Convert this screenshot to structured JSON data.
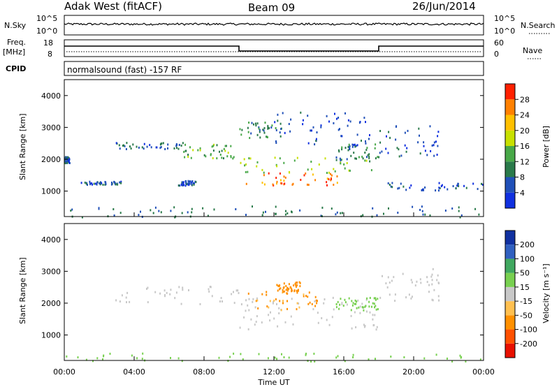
{
  "header": {
    "station": "Adak West (fitACF)",
    "beam": "Beam 09",
    "date": "26/Jun/2014"
  },
  "sky_panel": {
    "left_label": "N.Sky",
    "left_ticks": [
      "10^5",
      "10^0"
    ],
    "right_label": "N.Search",
    "right_ticks": [
      "10^5",
      "10^0"
    ]
  },
  "freq_panel": {
    "left_label_line1": "Freq.",
    "left_label_line2": "[MHz]",
    "left_ticks": [
      "18",
      "8"
    ],
    "right_label": "Nave",
    "right_ticks": [
      "60",
      "0"
    ]
  },
  "cpid_panel": {
    "label": "CPID",
    "text": "normalsound (fast) -157 RF"
  },
  "x_axis": {
    "label": "Time UT",
    "ticks": [
      "00:00",
      "04:00",
      "08:00",
      "12:00",
      "16:00",
      "20:00",
      "00:00"
    ]
  },
  "power_colorbar": {
    "label": "Power [dB]",
    "ticks": [
      "28",
      "24",
      "20",
      "16",
      "12",
      "8",
      "4"
    ],
    "colors": [
      "#1030e0",
      "#2050b8",
      "#2a7a4a",
      "#48a848",
      "#c8e000",
      "#ffc000",
      "#ff8000",
      "#ff2000"
    ]
  },
  "velocity_colorbar": {
    "label": "Velocity [m s⁻¹]",
    "ticks": [
      "200",
      "100",
      "50",
      "15",
      "-15",
      "-50",
      "-100",
      "-200"
    ],
    "colors": [
      "#e81000",
      "#ff5000",
      "#ff9000",
      "#ffc050",
      "#c8c8c8",
      "#78d050",
      "#40a860",
      "#3060c0",
      "#1030a0"
    ]
  },
  "chart_data": [
    {
      "type": "heatmap",
      "title": "",
      "xlabel": "Time UT",
      "ylabel": "Slant Range [km]",
      "xlim": [
        0,
        24
      ],
      "ylim": [
        200,
        4500
      ],
      "yticks": [
        1000,
        2000,
        3000,
        4000
      ],
      "quantity": "Power [dB]",
      "scatter_regions": [
        {
          "t": [
            0.0,
            0.3
          ],
          "range": [
            1900,
            2100
          ],
          "value_db": 6
        },
        {
          "t": [
            0.9,
            3.3
          ],
          "range": [
            1230,
            1330
          ],
          "value_db": 6
        },
        {
          "t": [
            2.9,
            6.8
          ],
          "range": [
            2300,
            2550
          ],
          "value_db": 7
        },
        {
          "t": [
            6.8,
            10.0
          ],
          "range": [
            2050,
            2500
          ],
          "value_db": 14
        },
        {
          "t": [
            6.5,
            7.5
          ],
          "range": [
            1200,
            1350
          ],
          "value_db": 6
        },
        {
          "t": [
            10.0,
            12.5
          ],
          "range": [
            2700,
            3200
          ],
          "value_db": 10
        },
        {
          "t": [
            10.0,
            15.8
          ],
          "range": [
            1200,
            1600
          ],
          "value_db": 26
        },
        {
          "t": [
            10.0,
            18.0
          ],
          "range": [
            1600,
            2100
          ],
          "value_db": 16
        },
        {
          "t": [
            12.0,
            17.5
          ],
          "range": [
            2400,
            3500
          ],
          "value_db": 5
        },
        {
          "t": [
            15.5,
            18.0
          ],
          "range": [
            1900,
            2500
          ],
          "value_db": 10
        },
        {
          "t": [
            18.0,
            21.5
          ],
          "range": [
            2100,
            3100
          ],
          "value_db": 6
        },
        {
          "t": [
            18.5,
            24.0
          ],
          "range": [
            1050,
            1300
          ],
          "value_db": 5
        },
        {
          "t": [
            0.0,
            24.0
          ],
          "range": [
            200,
            550
          ],
          "value_db": 8
        }
      ]
    },
    {
      "type": "heatmap",
      "title": "",
      "xlabel": "Time UT",
      "ylabel": "Slant Range [km]",
      "xlim": [
        0,
        24
      ],
      "ylim": [
        200,
        4500
      ],
      "yticks": [
        1000,
        2000,
        3000,
        4000
      ],
      "quantity": "Velocity [m s⁻¹]",
      "scatter_regions": [
        {
          "t": [
            2.9,
            10.0
          ],
          "range": [
            2000,
            2550
          ],
          "velocity": 0
        },
        {
          "t": [
            10.0,
            18.0
          ],
          "range": [
            1200,
            2200
          ],
          "velocity": 0
        },
        {
          "t": [
            10.5,
            14.5
          ],
          "range": [
            1800,
            2400
          ],
          "velocity": -60
        },
        {
          "t": [
            12.0,
            13.5
          ],
          "range": [
            2400,
            2700
          ],
          "velocity": -80
        },
        {
          "t": [
            15.5,
            18.0
          ],
          "range": [
            1800,
            2200
          ],
          "velocity": 30
        },
        {
          "t": [
            18.0,
            21.5
          ],
          "range": [
            2100,
            3100
          ],
          "velocity": 0
        },
        {
          "t": [
            0.0,
            24.0
          ],
          "range": [
            200,
            450
          ],
          "velocity": 30
        }
      ]
    }
  ]
}
